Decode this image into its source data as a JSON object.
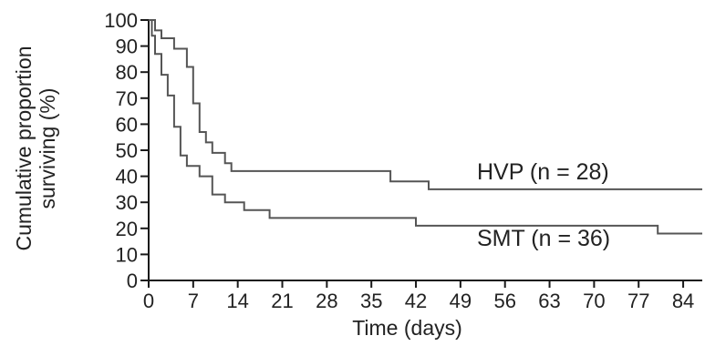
{
  "chart_data": {
    "type": "line",
    "step": true,
    "xlabel": "Time (days)",
    "ylabel_lines": [
      "Cumulative proportion",
      "surviving (%)"
    ],
    "xlim": [
      0,
      87
    ],
    "ylim": [
      0,
      100
    ],
    "x_ticks": [
      0,
      7,
      14,
      21,
      28,
      35,
      42,
      49,
      56,
      63,
      70,
      77,
      84
    ],
    "y_ticks": [
      0,
      10,
      20,
      30,
      40,
      50,
      60,
      70,
      80,
      90,
      100
    ],
    "grid": false,
    "colors": {
      "axis": "#1a1a1a",
      "series": "#555555",
      "text": "#222222"
    },
    "series": [
      {
        "name": "HVP (n = 28)",
        "points": [
          [
            0,
            100
          ],
          [
            1,
            100
          ],
          [
            1,
            96
          ],
          [
            2,
            96
          ],
          [
            2,
            93
          ],
          [
            4,
            93
          ],
          [
            4,
            89
          ],
          [
            6,
            89
          ],
          [
            6,
            82
          ],
          [
            7,
            82
          ],
          [
            7,
            68
          ],
          [
            8,
            68
          ],
          [
            8,
            57
          ],
          [
            9,
            57
          ],
          [
            9,
            53
          ],
          [
            10,
            53
          ],
          [
            10,
            49
          ],
          [
            12,
            49
          ],
          [
            12,
            45
          ],
          [
            13,
            45
          ],
          [
            13,
            42
          ],
          [
            38,
            42
          ],
          [
            38,
            38
          ],
          [
            44,
            38
          ],
          [
            44,
            35
          ],
          [
            87,
            35
          ]
        ]
      },
      {
        "name": "SMT (n = 36)",
        "points": [
          [
            0,
            100
          ],
          [
            0.5,
            100
          ],
          [
            0.5,
            94
          ],
          [
            1,
            94
          ],
          [
            1,
            87
          ],
          [
            2,
            87
          ],
          [
            2,
            79
          ],
          [
            3,
            79
          ],
          [
            3,
            71
          ],
          [
            4,
            71
          ],
          [
            4,
            59
          ],
          [
            5,
            59
          ],
          [
            5,
            48
          ],
          [
            6,
            48
          ],
          [
            6,
            44
          ],
          [
            8,
            44
          ],
          [
            8,
            40
          ],
          [
            10,
            40
          ],
          [
            10,
            33
          ],
          [
            12,
            33
          ],
          [
            12,
            30
          ],
          [
            15,
            30
          ],
          [
            15,
            27
          ],
          [
            19,
            27
          ],
          [
            19,
            24
          ],
          [
            42,
            24
          ],
          [
            42,
            21
          ],
          [
            80,
            21
          ],
          [
            80,
            18
          ],
          [
            87,
            18
          ]
        ]
      }
    ]
  }
}
